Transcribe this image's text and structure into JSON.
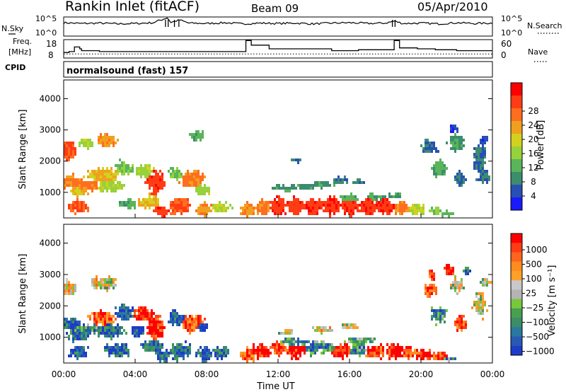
{
  "header": {
    "station": "Rankin Inlet (fitACF)",
    "beam": "Beam 09",
    "date": "05/Apr/2010"
  },
  "panels": {
    "nsky": {
      "label": "N.Sky",
      "ticks": [
        "10^5",
        "10^0"
      ],
      "right_label": "N.Search",
      "right_ticks": [
        "10^5",
        "10^0"
      ]
    },
    "freq": {
      "label_line1": "Freq.",
      "label_line2": "[MHz]",
      "ticks": [
        "18",
        "8"
      ],
      "right_label": "Nave",
      "right_ticks": [
        "60",
        "0"
      ]
    },
    "cpid": {
      "label": "CPID",
      "program": "normalsound (fast) 157"
    }
  },
  "chart_data": [
    {
      "type": "line",
      "name": "nsky-nsearch",
      "x": [
        0,
        1,
        2,
        3,
        4,
        5,
        5.8,
        6,
        6.5,
        7,
        8,
        9,
        10,
        11,
        12,
        13,
        14,
        15,
        16,
        17,
        18,
        18.5,
        19,
        20,
        21,
        22,
        23,
        24
      ],
      "series": [
        {
          "values": [
            3.5,
            3.3,
            3.4,
            3.2,
            3.3,
            3.5,
            4.8,
            3.6,
            4.2,
            3.4,
            3.3,
            3.5,
            3.2,
            3.4,
            3.3,
            3.4,
            3.2,
            3.4,
            3.5,
            3.3,
            3.4,
            3.9,
            3.3,
            3.4,
            3.2,
            3.5,
            3.3,
            3.4
          ]
        }
      ],
      "ylim": [
        0,
        5
      ]
    },
    {
      "type": "line",
      "name": "freq-nave",
      "series": [
        {
          "steps": [
            [
              0,
              11
            ],
            [
              0.3,
              11.5
            ],
            [
              0.6,
              14
            ],
            [
              0.9,
              13
            ],
            [
              1,
              12
            ],
            [
              2,
              11.5
            ],
            [
              10.2,
              17.5
            ],
            [
              10.5,
              15
            ],
            [
              11.5,
              13
            ],
            [
              15,
              12
            ],
            [
              16.5,
              12.5
            ],
            [
              18.5,
              17.5
            ],
            [
              18.8,
              13.5
            ],
            [
              19.8,
              13
            ],
            [
              20.8,
              12.5
            ],
            [
              22,
              12
            ],
            [
              24,
              12
            ]
          ]
        },
        {
          "values": [
            10.2,
            10.2
          ]
        }
      ],
      "xlim": [
        0,
        24
      ],
      "ylim": [
        8,
        18
      ]
    },
    {
      "type": "heatmap",
      "name": "power",
      "ylabel": "Slant Range [km]",
      "yticks": [
        "1000",
        "2000",
        "3000",
        "4000"
      ],
      "ylim": [
        180,
        4600
      ],
      "colorbar": {
        "label": "Power [dB]",
        "ticks": [
          "4",
          "8",
          "12",
          "16",
          "20",
          "24",
          "28"
        ],
        "colors": [
          "#1a1aff",
          "#2850b4",
          "#3c8c6e",
          "#5ab45a",
          "#96d23c",
          "#d2d21e",
          "#f0a01e",
          "#ff6e1e",
          "#ff3c14",
          "#ff0000"
        ]
      },
      "blobs": [
        [
          0.3,
          2400,
          0.5,
          350,
          24
        ],
        [
          0.4,
          1350,
          0.7,
          260,
          22
        ],
        [
          0.8,
          1050,
          0.6,
          180,
          18
        ],
        [
          1.2,
          1250,
          1.0,
          220,
          22
        ],
        [
          0.8,
          550,
          0.6,
          220,
          24
        ],
        [
          1.3,
          2600,
          0.4,
          200,
          14
        ],
        [
          2.4,
          2700,
          0.6,
          250,
          20
        ],
        [
          2.2,
          1550,
          1.0,
          280,
          18
        ],
        [
          2.6,
          1200,
          0.9,
          220,
          14
        ],
        [
          3.4,
          1800,
          0.6,
          250,
          12
        ],
        [
          3.6,
          650,
          0.5,
          200,
          10
        ],
        [
          4.5,
          1700,
          0.6,
          250,
          14
        ],
        [
          5.2,
          1350,
          0.6,
          420,
          26
        ],
        [
          4.8,
          700,
          0.6,
          250,
          18
        ],
        [
          5.5,
          400,
          0.5,
          200,
          26
        ],
        [
          6.3,
          1600,
          0.5,
          220,
          12
        ],
        [
          7.2,
          1450,
          0.8,
          300,
          22
        ],
        [
          7.8,
          1100,
          0.5,
          200,
          14
        ],
        [
          7.5,
          2850,
          0.4,
          200,
          10
        ],
        [
          6.5,
          550,
          0.7,
          300,
          24
        ],
        [
          7.9,
          450,
          0.5,
          250,
          20
        ],
        [
          8.8,
          500,
          0.6,
          200,
          16
        ],
        [
          10.3,
          450,
          0.5,
          250,
          20
        ],
        [
          11.2,
          500,
          0.5,
          250,
          22
        ],
        [
          12.0,
          550,
          0.6,
          300,
          26
        ],
        [
          13.0,
          550,
          0.6,
          300,
          26
        ],
        [
          14.0,
          550,
          0.6,
          300,
          26
        ],
        [
          15.0,
          550,
          0.6,
          300,
          26
        ],
        [
          16.0,
          550,
          0.6,
          300,
          26
        ],
        [
          17.0,
          550,
          0.6,
          300,
          26
        ],
        [
          18.0,
          550,
          0.6,
          300,
          26
        ],
        [
          18.9,
          500,
          0.5,
          250,
          22
        ],
        [
          19.8,
          450,
          0.5,
          200,
          16
        ],
        [
          20.8,
          400,
          0.4,
          150,
          12
        ],
        [
          21.4,
          300,
          0.4,
          100,
          10
        ],
        [
          12.0,
          1150,
          0.5,
          100,
          8
        ],
        [
          14.5,
          1250,
          0.6,
          120,
          8
        ],
        [
          15.5,
          1400,
          0.5,
          120,
          6
        ],
        [
          16.5,
          1350,
          0.4,
          100,
          6
        ],
        [
          13.0,
          2050,
          0.3,
          80,
          6
        ],
        [
          20.5,
          2500,
          0.5,
          250,
          6
        ],
        [
          22.0,
          2600,
          0.5,
          300,
          8
        ],
        [
          21.0,
          1750,
          0.5,
          300,
          10
        ],
        [
          22.2,
          1450,
          0.4,
          250,
          6
        ],
        [
          23.3,
          2100,
          0.4,
          500,
          6
        ],
        [
          23.5,
          1500,
          0.4,
          200,
          6
        ],
        [
          23.6,
          2750,
          0.3,
          150,
          4
        ],
        [
          21.8,
          3100,
          0.3,
          150,
          4
        ],
        [
          12.5,
          1150,
          0.6,
          100,
          8
        ],
        [
          13.5,
          1200,
          0.6,
          100,
          8
        ],
        [
          16.0,
          850,
          0.6,
          120,
          10
        ],
        [
          17.5,
          850,
          0.6,
          120,
          10
        ],
        [
          18.5,
          900,
          0.5,
          100,
          8
        ]
      ]
    },
    {
      "type": "heatmap",
      "name": "velocity",
      "xlabel": "Time UT",
      "ylabel": "Slant Range [km]",
      "xticks": [
        "00:00",
        "04:00",
        "08:00",
        "12:00",
        "16:00",
        "20:00",
        "00:00"
      ],
      "yticks": [
        "1000",
        "2000",
        "3000",
        "4000"
      ],
      "ylim": [
        180,
        4600
      ],
      "colorbar": {
        "label": "Velocity [m s⁻¹]",
        "ticks": [
          "1000",
          "500",
          "100",
          "25",
          "−25",
          "−100",
          "−500",
          "−1000"
        ],
        "colors": [
          "#1e3cc8",
          "#285ab4",
          "#2878a0",
          "#3c8c64",
          "#46a050",
          "#78c83c",
          "#b4b4b4",
          "#c8c8c8",
          "#ffa028",
          "#ff8c1e",
          "#ff641e",
          "#ff3c14",
          "#ff0000"
        ]
      },
      "blobs": [
        [
          0.3,
          2550,
          0.5,
          300,
          -1
        ],
        [
          0.4,
          1400,
          0.7,
          250,
          3
        ],
        [
          0.8,
          1050,
          0.6,
          200,
          3
        ],
        [
          1.2,
          1250,
          0.9,
          220,
          2
        ],
        [
          0.8,
          550,
          0.6,
          250,
          3
        ],
        [
          2.4,
          2700,
          0.6,
          250,
          0
        ],
        [
          2.2,
          1600,
          0.9,
          250,
          -3
        ],
        [
          2.6,
          1200,
          0.9,
          250,
          3
        ],
        [
          3.4,
          1800,
          0.6,
          250,
          3
        ],
        [
          3.0,
          600,
          0.8,
          250,
          3
        ],
        [
          4.5,
          1750,
          0.6,
          250,
          -4
        ],
        [
          4.2,
          1200,
          0.5,
          200,
          4
        ],
        [
          5.2,
          1300,
          0.6,
          380,
          -4
        ],
        [
          5.0,
          700,
          0.7,
          250,
          3
        ],
        [
          5.6,
          400,
          0.5,
          200,
          3
        ],
        [
          6.3,
          1600,
          0.6,
          250,
          3
        ],
        [
          7.2,
          1450,
          0.7,
          300,
          -3
        ],
        [
          7.8,
          1300,
          0.4,
          200,
          5
        ],
        [
          6.5,
          550,
          0.7,
          300,
          3
        ],
        [
          7.9,
          450,
          0.5,
          250,
          3
        ],
        [
          8.8,
          500,
          0.6,
          200,
          3
        ],
        [
          10.3,
          450,
          0.5,
          250,
          -3
        ],
        [
          11.0,
          550,
          0.6,
          250,
          -4
        ],
        [
          12.0,
          650,
          0.5,
          250,
          -3
        ],
        [
          13.0,
          550,
          0.6,
          250,
          -4
        ],
        [
          14.0,
          650,
          0.5,
          250,
          2
        ],
        [
          14.8,
          700,
          0.5,
          200,
          2
        ],
        [
          15.5,
          550,
          0.6,
          250,
          -4
        ],
        [
          16.5,
          600,
          0.5,
          250,
          2
        ],
        [
          17.5,
          550,
          0.6,
          250,
          -3
        ],
        [
          18.5,
          550,
          0.6,
          250,
          -4
        ],
        [
          19.3,
          500,
          0.5,
          200,
          -3
        ],
        [
          20.2,
          450,
          0.6,
          200,
          -4
        ],
        [
          21.0,
          400,
          0.5,
          150,
          -3
        ],
        [
          21.6,
          300,
          0.4,
          100,
          2
        ],
        [
          12.5,
          1150,
          0.5,
          120,
          0
        ],
        [
          14.5,
          1250,
          0.6,
          120,
          -1
        ],
        [
          16.0,
          1350,
          0.5,
          120,
          0
        ],
        [
          20.5,
          2500,
          0.5,
          250,
          -3
        ],
        [
          22.0,
          2650,
          0.4,
          250,
          0
        ],
        [
          21.0,
          1700,
          0.5,
          300,
          2
        ],
        [
          22.2,
          1450,
          0.4,
          250,
          -3
        ],
        [
          23.3,
          2000,
          0.4,
          450,
          0
        ],
        [
          23.6,
          2750,
          0.3,
          150,
          0
        ],
        [
          21.6,
          3150,
          0.3,
          200,
          -4
        ],
        [
          22.6,
          3100,
          0.2,
          150,
          3
        ],
        [
          20.6,
          3000,
          0.2,
          200,
          -3
        ],
        [
          1.8,
          2700,
          0.3,
          200,
          -1
        ],
        [
          13.0,
          850,
          1.0,
          120,
          2
        ],
        [
          16.5,
          900,
          1.0,
          120,
          1
        ]
      ]
    }
  ]
}
